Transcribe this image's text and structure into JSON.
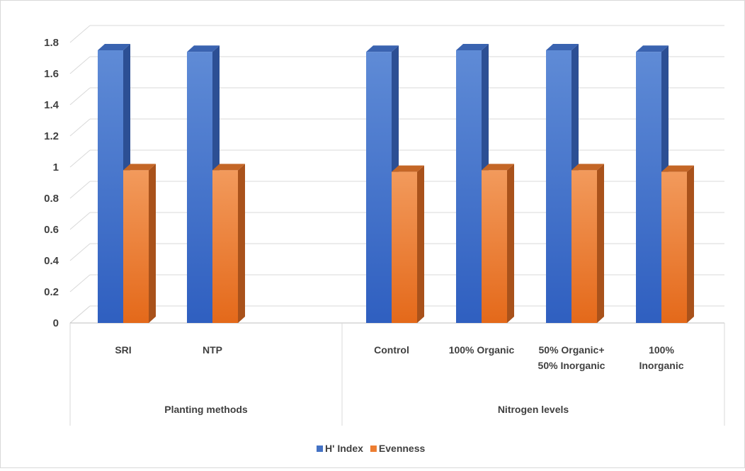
{
  "chart_data": {
    "type": "bar",
    "style": "3d-clustered-column",
    "groups": [
      {
        "label": "Planting methods",
        "categories": [
          "SRI",
          "NTP"
        ]
      },
      {
        "label": "Nitrogen levels",
        "categories": [
          "Control",
          "100% Organic",
          "50% Organic+ 50% Inorganic",
          "100% Inorganic"
        ]
      }
    ],
    "categories": [
      [
        "SRI"
      ],
      [
        "NTP"
      ],
      [
        "Control"
      ],
      [
        "100% Organic"
      ],
      [
        "50% Organic+",
        "50% Inorganic"
      ],
      [
        "100%",
        "Inorganic"
      ]
    ],
    "series": [
      {
        "name": "H' Index",
        "color": "#4472c4",
        "values": [
          1.75,
          1.74,
          1.74,
          1.75,
          1.75,
          1.74
        ]
      },
      {
        "name": "Evenness",
        "color": "#ed7d31",
        "values": [
          0.98,
          0.98,
          0.97,
          0.98,
          0.98,
          0.97
        ]
      }
    ],
    "yticks": [
      "0",
      "0.2",
      "0.4",
      "0.6",
      "0.8",
      "1",
      "1.2",
      "1.4",
      "1.6",
      "1.8"
    ],
    "ylim": [
      0,
      1.8
    ],
    "grid": true,
    "legend_position": "bottom",
    "title": "",
    "xlabel": "",
    "ylabel": ""
  }
}
